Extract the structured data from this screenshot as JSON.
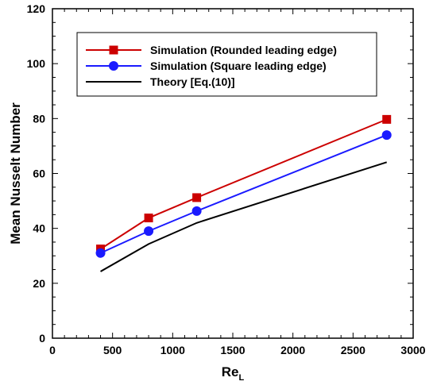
{
  "chart_data": {
    "type": "line",
    "xlabel_main": "Re",
    "xlabel_sub": "L",
    "ylabel": "Mean Nusselt Number",
    "xlim": [
      0,
      3000
    ],
    "ylim": [
      0,
      120
    ],
    "xticks": [
      0,
      500,
      1000,
      1500,
      2000,
      2500,
      3000
    ],
    "yticks": [
      0,
      20,
      40,
      60,
      80,
      100,
      120
    ],
    "grid": false,
    "legend_position": "top-left",
    "series": [
      {
        "name": "Simulation (Rounded leading edge)",
        "color": "#cc0000",
        "marker": "square",
        "x": [
          400,
          800,
          1200,
          2780
        ],
        "y": [
          32.5,
          43.8,
          51.2,
          79.7
        ]
      },
      {
        "name": "Simulation (Square leading edge)",
        "color": "#1a1aff",
        "marker": "circle",
        "x": [
          400,
          800,
          1200,
          2780
        ],
        "y": [
          31.0,
          39.0,
          46.3,
          74.0
        ]
      },
      {
        "name": "Theory [Eq.(10)]",
        "color": "#000000",
        "marker": "none",
        "x": [
          400,
          800,
          1200,
          2780
        ],
        "y": [
          24.3,
          34.3,
          42.0,
          64.1
        ]
      }
    ]
  }
}
